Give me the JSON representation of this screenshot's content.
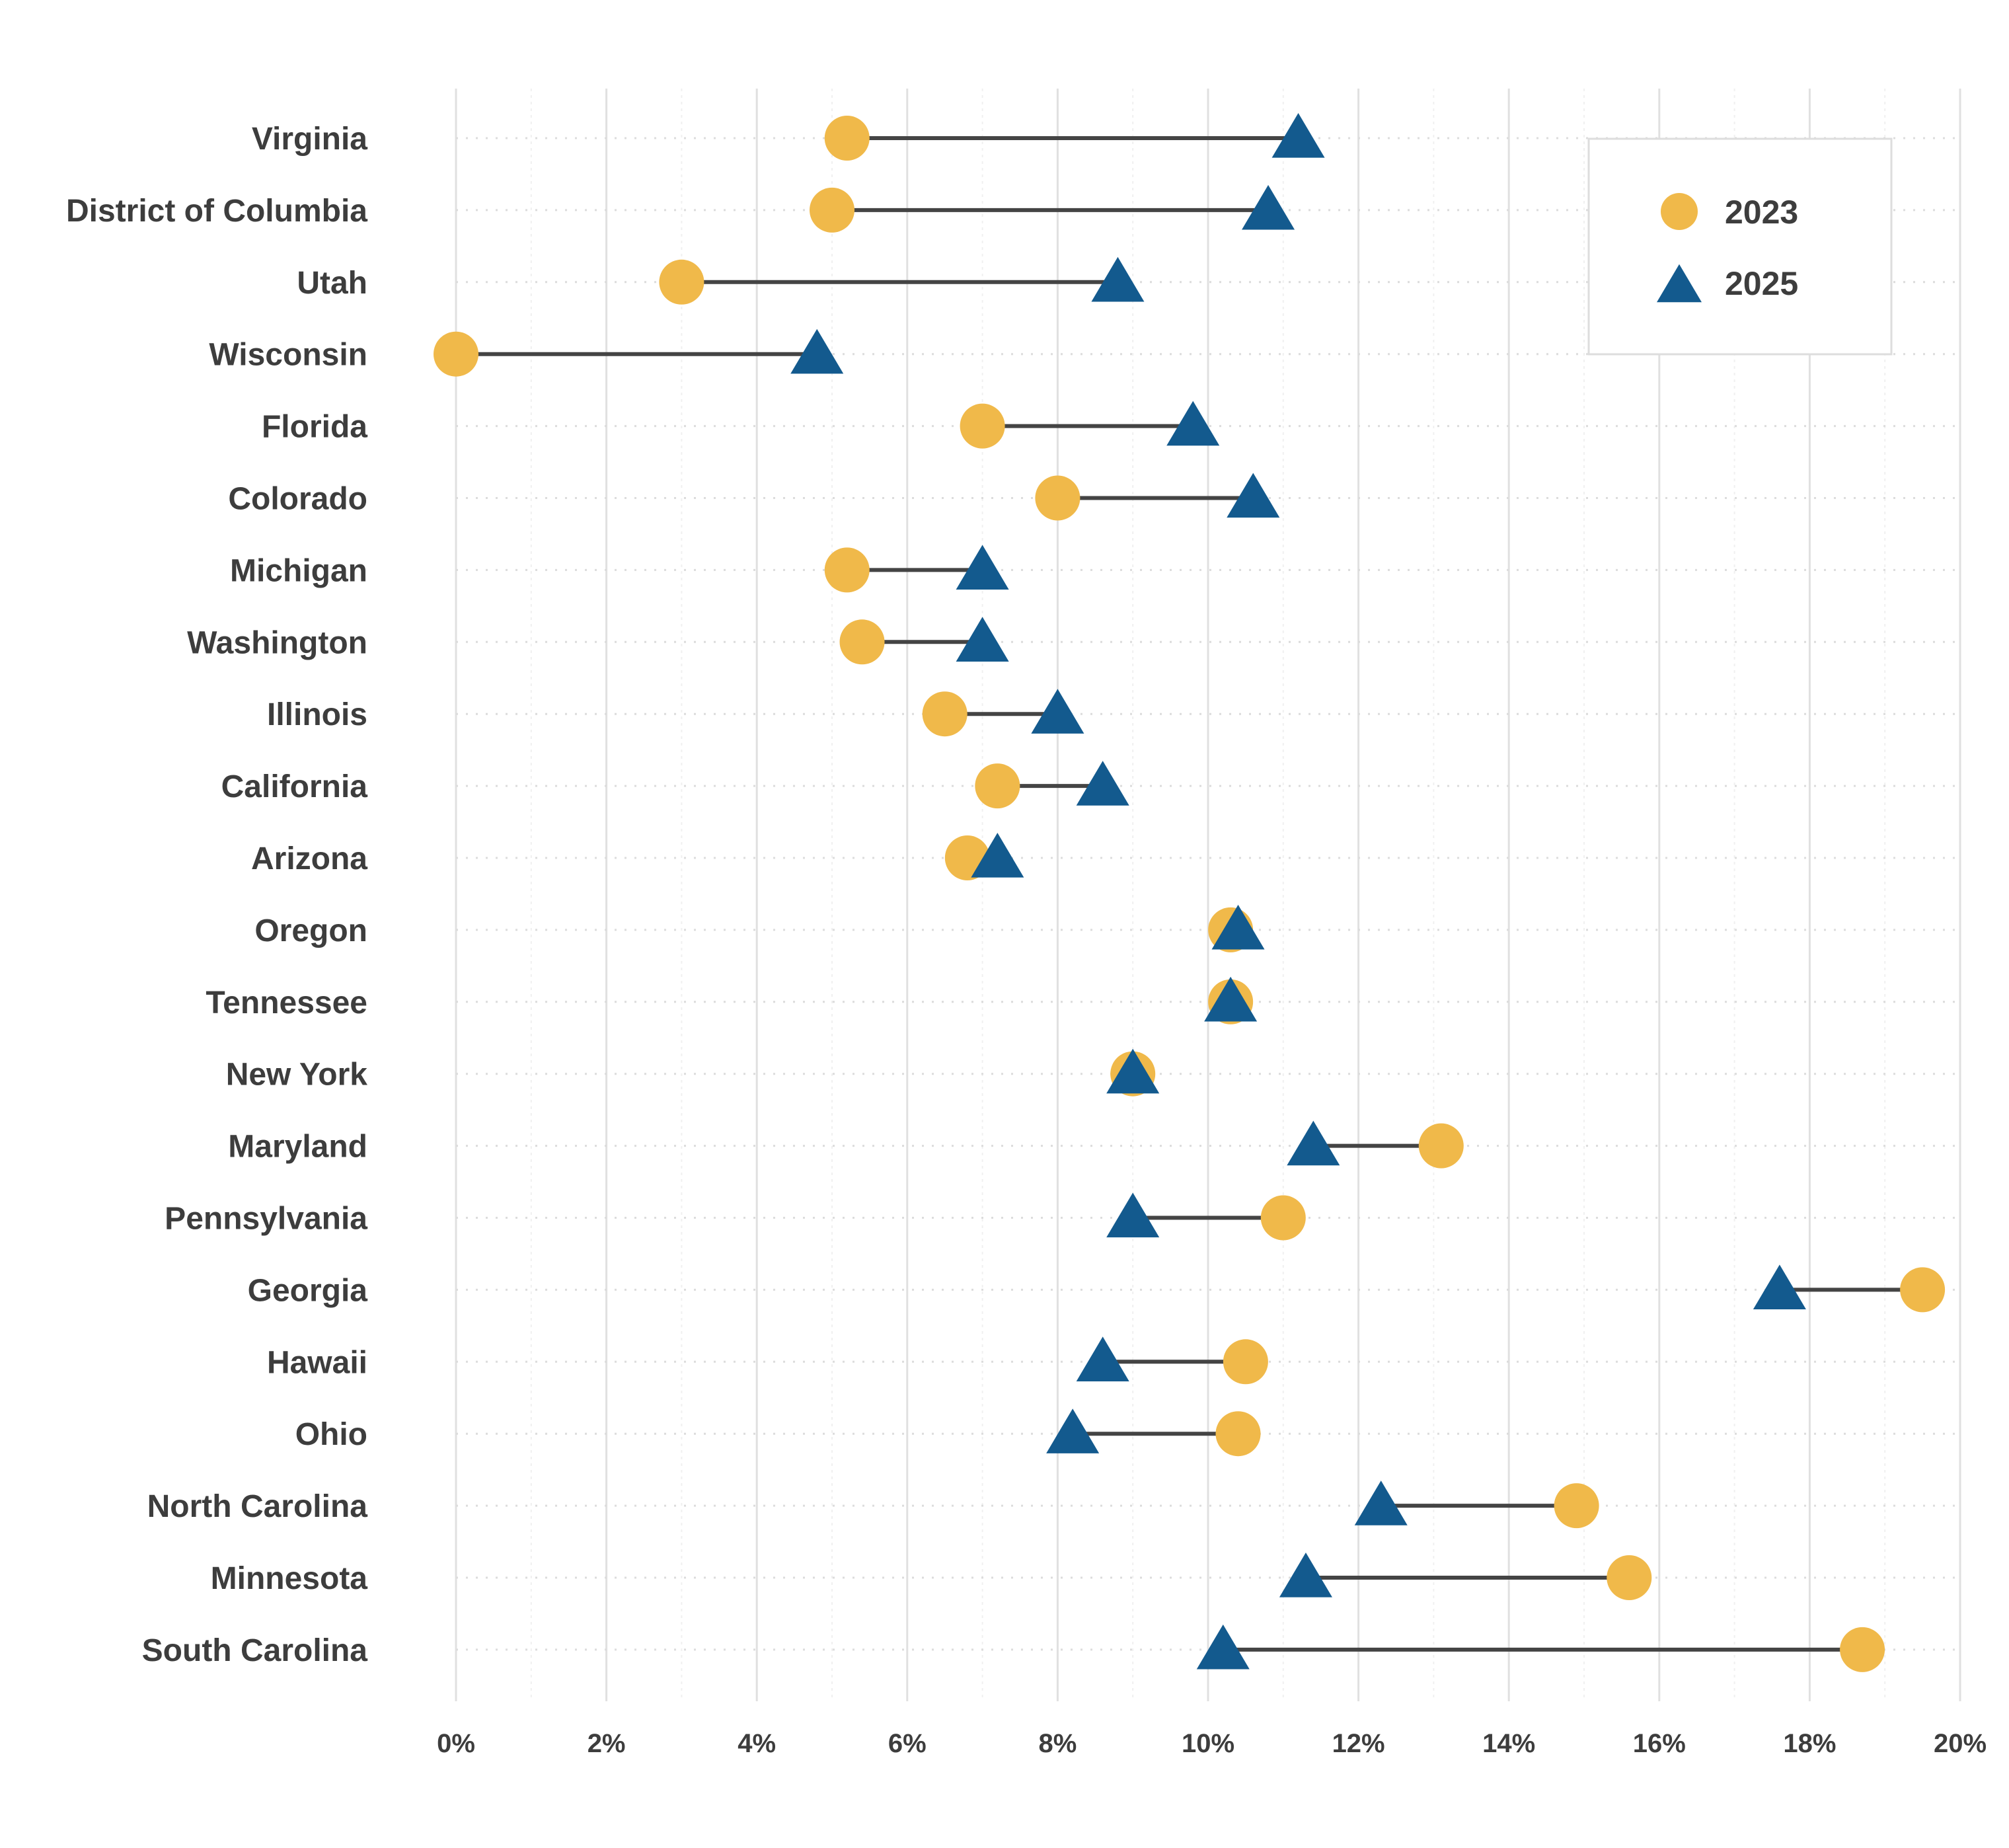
{
  "chart_data": {
    "type": "scatter",
    "subtype": "dumbbell",
    "title": "",
    "xlabel": "",
    "ylabel": "",
    "xlim": [
      0,
      20
    ],
    "x_ticks": [
      "0%",
      "2%",
      "4%",
      "6%",
      "8%",
      "10%",
      "12%",
      "14%",
      "16%",
      "18%",
      "20%"
    ],
    "grid": true,
    "legend_position": "top-right",
    "colors": {
      "2023": "#f0b94a",
      "2025": "#135a8e",
      "connector": "#444444",
      "text": "#3d3d3d"
    },
    "series": [
      {
        "name": "2023",
        "marker": "circle"
      },
      {
        "name": "2025",
        "marker": "triangle"
      }
    ],
    "categories": [
      "Virginia",
      "District of Columbia",
      "Utah",
      "Wisconsin",
      "Florida",
      "Colorado",
      "Michigan",
      "Washington",
      "Illinois",
      "California",
      "Arizona",
      "Oregon",
      "Tennessee",
      "New York",
      "Maryland",
      "Pennsylvania",
      "Georgia",
      "Hawaii",
      "Ohio",
      "North Carolina",
      "Minnesota",
      "South Carolina"
    ],
    "values_2023": [
      5.2,
      5.0,
      3.0,
      0.0,
      7.0,
      8.0,
      5.2,
      5.4,
      6.5,
      7.2,
      6.8,
      10.3,
      10.3,
      9.0,
      13.1,
      11.0,
      19.5,
      10.5,
      10.4,
      14.9,
      15.6,
      18.7
    ],
    "values_2025": [
      11.2,
      10.8,
      8.8,
      4.8,
      9.8,
      10.6,
      7.0,
      7.0,
      8.0,
      8.6,
      7.2,
      10.4,
      10.3,
      9.0,
      11.4,
      9.0,
      17.6,
      8.6,
      8.2,
      12.3,
      11.3,
      10.2
    ]
  }
}
